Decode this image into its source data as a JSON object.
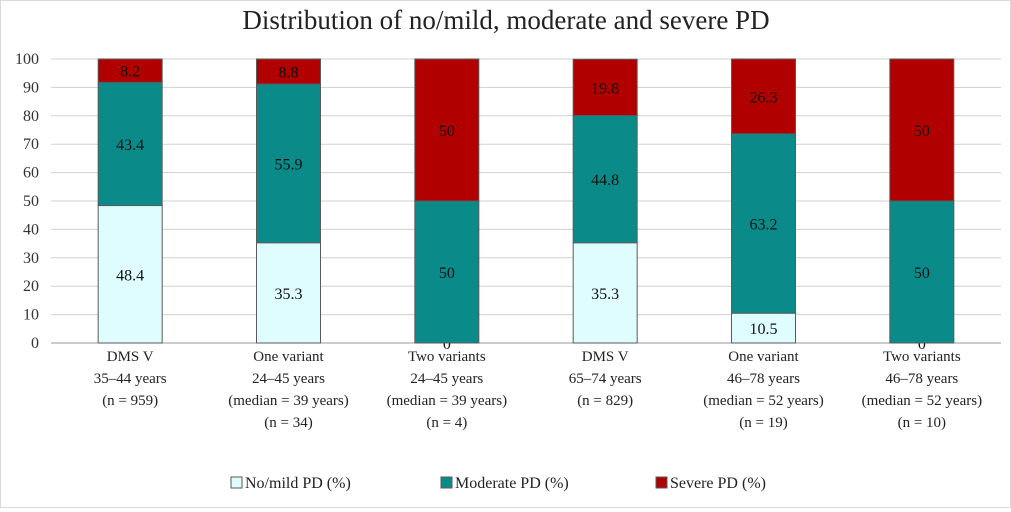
{
  "chart_data": {
    "type": "bar",
    "stacked": true,
    "title": "Distribution of no/mild, moderate and severe PD",
    "xlabel": "",
    "ylabel": "",
    "ylim": [
      0,
      100
    ],
    "yticks": [
      0,
      10,
      20,
      30,
      40,
      50,
      60,
      70,
      80,
      90,
      100
    ],
    "grid": true,
    "legend": "bottom",
    "categories": [
      [
        "DMS V",
        "35–44 years",
        "(n = 959)"
      ],
      [
        "One variant",
        "24–45 years",
        "(median = 39 years)",
        "(n = 34)"
      ],
      [
        "Two variants",
        "24–45 years",
        "(median = 39 years)",
        "(n = 4)"
      ],
      [
        "DMS V",
        "65–74 years",
        "(n = 829)"
      ],
      [
        "One variant",
        "46–78 years",
        "(median = 52 years)",
        "(n = 19)"
      ],
      [
        "Two variants",
        "46–78 years",
        "(median = 52 years)",
        "(n = 10)"
      ]
    ],
    "series": [
      {
        "name": "No/mild PD (%)",
        "color": "#dffcff",
        "values": [
          48.4,
          35.3,
          0,
          35.3,
          10.5,
          0
        ]
      },
      {
        "name": "Moderate PD (%)",
        "color": "#0b8a8a",
        "values": [
          43.4,
          55.9,
          50,
          44.8,
          63.2,
          50
        ]
      },
      {
        "name": "Severe PD (%)",
        "color": "#b00000",
        "values": [
          8.2,
          8.8,
          50,
          19.8,
          26.3,
          50
        ]
      }
    ]
  }
}
